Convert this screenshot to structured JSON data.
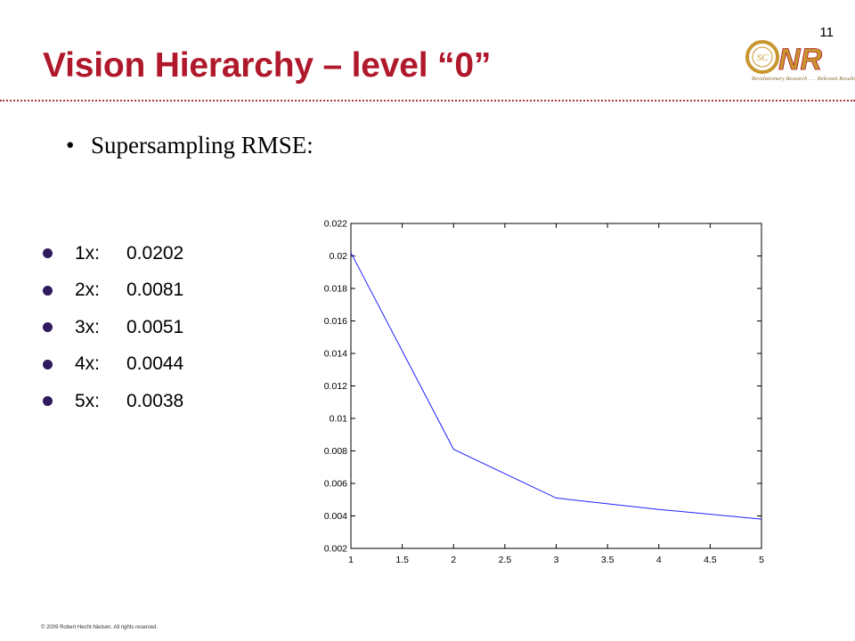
{
  "page_number": "11",
  "title": "Vision Hierarchy – level “0”",
  "logo": {
    "monogram": "SC",
    "text": "ONR",
    "tagline": "Revolutionary Research . . . Relevant Results",
    "colors": {
      "gold": "#c8962e",
      "red": "#b0182b"
    }
  },
  "main_bullet": {
    "marker": "•",
    "text": "Supersampling  RMSE:"
  },
  "rmse_list": [
    {
      "multiplier": "1x:",
      "value": "0.0202"
    },
    {
      "multiplier": "2x:",
      "value": "0.0081"
    },
    {
      "multiplier": "3x:",
      "value": "0.0051"
    },
    {
      "multiplier": "4x:",
      "value": "0.0044"
    },
    {
      "multiplier": "5x:",
      "value": "0.0038"
    }
  ],
  "chart_data": {
    "type": "line",
    "title": "",
    "xlabel": "",
    "ylabel": "",
    "x": [
      1,
      2,
      3,
      4,
      5
    ],
    "series": [
      {
        "values": [
          0.0202,
          0.0081,
          0.0051,
          0.0044,
          0.0038
        ],
        "color": "#2020ff"
      }
    ],
    "xlim": [
      1,
      5
    ],
    "ylim": [
      0.002,
      0.022
    ],
    "xticks": [
      1,
      1.5,
      2,
      2.5,
      3,
      3.5,
      4,
      4.5,
      5
    ],
    "xtick_labels": [
      "1",
      "1.5",
      "2",
      "2.5",
      "3",
      "3.5",
      "4",
      "4.5",
      "5"
    ],
    "yticks": [
      0.002,
      0.004,
      0.006,
      0.008,
      0.01,
      0.012,
      0.014,
      0.016,
      0.018,
      0.02,
      0.022
    ],
    "ytick_labels": [
      "0.002",
      "0.004",
      "0.006",
      "0.008",
      "0.01",
      "0.012",
      "0.014",
      "0.016",
      "0.018",
      "0.02",
      "0.022"
    ],
    "grid": false,
    "legend": "none"
  },
  "footer": "© 2009 Robert  Hecht-Nielsen.  All rights reserved.",
  "colors": {
    "title": "#b0182b",
    "rule": "#a8353f",
    "list_marker": "#2e1a5c"
  }
}
